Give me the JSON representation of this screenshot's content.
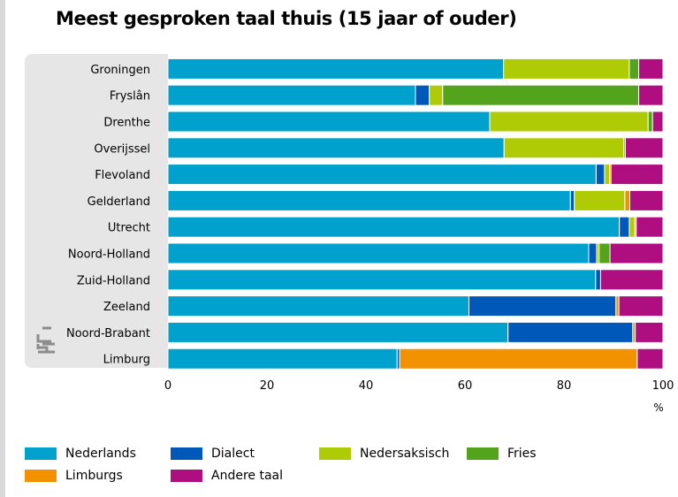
{
  "title": "Meest gesproken taal thuis (15 jaar of ouder)",
  "chart_data": {
    "type": "bar",
    "orientation": "horizontal",
    "stacked": true,
    "title": "Meest gesproken taal thuis (15 jaar of ouder)",
    "xlabel": "",
    "unit": "%",
    "xlim": [
      0,
      100
    ],
    "xticks": [
      "0",
      "20",
      "40",
      "60",
      "80",
      "100"
    ],
    "grid": false,
    "legend_position": "bottom",
    "categories": [
      "Groningen",
      "Fryslân",
      "Drenthe",
      "Overijssel",
      "Flevoland",
      "Gelderland",
      "Utrecht",
      "Noord-Holland",
      "Zuid-Holland",
      "Zeeland",
      "Noord-Brabant",
      "Limburg"
    ],
    "series": [
      {
        "name": "Nederlands",
        "color": "#00a1cd",
        "values": [
          67.8,
          50,
          65,
          67.9,
          86.5,
          81.3,
          91.2,
          85,
          86.4,
          60.8,
          68.7,
          46.3
        ]
      },
      {
        "name": "Dialect",
        "color": "#0058b8",
        "values": [
          0,
          2.8,
          0,
          0,
          1.7,
          0.8,
          2,
          1.6,
          1,
          29.7,
          25.2,
          0.5
        ]
      },
      {
        "name": "Nedersaksisch",
        "color": "#afcb05",
        "values": [
          25.4,
          2.7,
          32,
          24.2,
          1,
          10.2,
          1.1,
          0.5,
          0,
          0,
          0,
          0
        ]
      },
      {
        "name": "Fries",
        "color": "#53a31d",
        "values": [
          1.9,
          39.6,
          0.9,
          0.3,
          0,
          0,
          0,
          2.2,
          0,
          0,
          0,
          0
        ]
      },
      {
        "name": "Limburgs",
        "color": "#f39200",
        "values": [
          0,
          0,
          0,
          0,
          0.3,
          1,
          0.3,
          0,
          0,
          0.6,
          0.5,
          48
        ]
      },
      {
        "name": "Andere taal",
        "color": "#af0e80",
        "values": [
          4.9,
          4.9,
          2.1,
          7.6,
          10.5,
          6.7,
          5.4,
          10.7,
          12.6,
          8.9,
          5.6,
          5.2
        ]
      }
    ]
  },
  "legend": [
    {
      "label": "Nederlands",
      "color": "#00a1cd"
    },
    {
      "label": "Dialect",
      "color": "#0058b8"
    },
    {
      "label": "Nedersaksisch",
      "color": "#afcb05"
    },
    {
      "label": "Fries",
      "color": "#53a31d"
    },
    {
      "label": "Limburgs",
      "color": "#f39200"
    },
    {
      "label": "Andere taal",
      "color": "#af0e80"
    }
  ],
  "logo": {
    "icon": "cbs-logo-icon"
  }
}
